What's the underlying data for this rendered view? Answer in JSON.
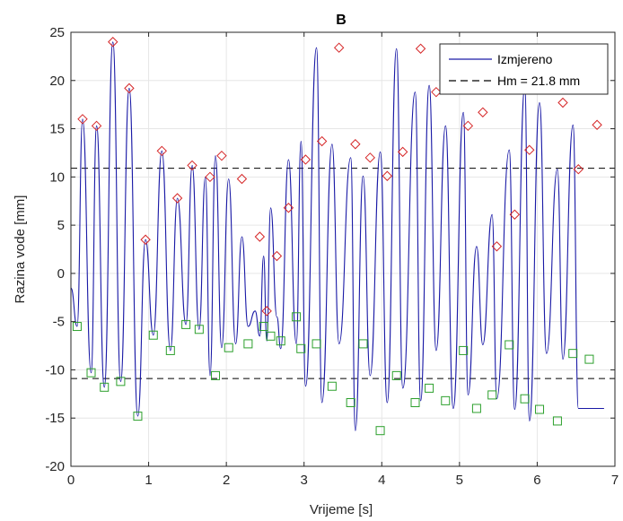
{
  "chart_data": {
    "type": "line",
    "title": "B",
    "xlabel": "Vrijeme [s]",
    "ylabel": "Razina vode [mm]",
    "xlim": [
      0,
      7
    ],
    "ylim": [
      -20,
      25
    ],
    "xticks": [
      0,
      1,
      2,
      3,
      4,
      5,
      6,
      7
    ],
    "yticks": [
      -20,
      -15,
      -10,
      -5,
      0,
      5,
      10,
      15,
      20,
      25
    ],
    "grid": true,
    "legend_position": "top-right",
    "colors": {
      "measured": "#1a1aa6",
      "hm_line": "#000000",
      "crest_marker": "#d62728",
      "trough_marker": "#2ca02c",
      "grid": "#e6e6e6"
    },
    "series": [
      {
        "name": "Izmjereno",
        "style": "solid",
        "x": [
          0.0,
          0.08,
          0.15,
          0.26,
          0.33,
          0.43,
          0.54,
          0.64,
          0.75,
          0.86,
          0.96,
          1.06,
          1.17,
          1.28,
          1.37,
          1.48,
          1.56,
          1.65,
          1.73,
          1.79,
          1.86,
          1.94,
          2.03,
          2.12,
          2.2,
          2.28,
          2.37,
          2.43,
          2.48,
          2.52,
          2.57,
          2.65,
          2.7,
          2.8,
          2.9,
          2.96,
          3.02,
          3.16,
          3.23,
          3.36,
          3.45,
          3.6,
          3.66,
          3.76,
          3.85,
          3.98,
          4.07,
          4.19,
          4.27,
          4.43,
          4.5,
          4.61,
          4.7,
          4.82,
          4.92,
          5.05,
          5.11,
          5.22,
          5.3,
          5.42,
          5.48,
          5.64,
          5.71,
          5.84,
          5.9,
          6.03,
          6.12,
          6.26,
          6.33,
          6.46,
          6.53,
          6.67,
          6.77,
          6.86
        ],
        "y": [
          -1.5,
          -5.5,
          16.0,
          -10.3,
          15.3,
          -11.8,
          24.0,
          -11.2,
          19.2,
          -14.8,
          3.5,
          -6.4,
          12.7,
          -8.0,
          7.8,
          -5.3,
          11.2,
          -5.8,
          10.0,
          -10.6,
          12.2,
          -7.7,
          9.8,
          -7.3,
          3.8,
          -5.5,
          -3.9,
          -6.5,
          1.8,
          -7.0,
          6.8,
          -4.5,
          -7.8,
          11.8,
          -7.3,
          13.7,
          -11.7,
          23.4,
          -13.4,
          13.4,
          -7.3,
          12.0,
          -16.3,
          10.1,
          -10.6,
          12.6,
          -13.4,
          23.3,
          -11.9,
          18.8,
          -13.2,
          19.5,
          -8.0,
          15.3,
          -14.0,
          16.7,
          -12.6,
          2.8,
          -7.4,
          6.1,
          -13.0,
          12.8,
          -14.1,
          19.3,
          -15.3,
          17.7,
          -8.3,
          10.8,
          -8.9,
          15.4,
          -14.0,
          -14.0,
          -14.0,
          -14.0
        ]
      },
      {
        "name": "Hm = 21.8 mm",
        "style": "dashed",
        "levels": [
          10.9,
          -10.9
        ]
      }
    ],
    "crest_markers": {
      "x": [
        0.15,
        0.33,
        0.54,
        0.75,
        0.96,
        1.17,
        1.37,
        1.56,
        1.79,
        1.94,
        2.2,
        2.43,
        2.52,
        2.65,
        2.8,
        3.02,
        3.23,
        3.45,
        3.66,
        3.85,
        4.07,
        4.27,
        4.5,
        4.7,
        4.92,
        5.11,
        5.3,
        5.48,
        5.71,
        5.9,
        6.12,
        6.33,
        6.53,
        6.77
      ],
      "y": [
        16.0,
        15.3,
        24.0,
        19.2,
        3.5,
        12.7,
        7.8,
        11.2,
        10.0,
        12.2,
        9.8,
        3.8,
        -3.9,
        1.8,
        6.8,
        11.8,
        13.7,
        23.4,
        13.4,
        12.0,
        10.1,
        12.6,
        23.3,
        18.8,
        19.5,
        15.3,
        16.7,
        2.8,
        6.1,
        12.8,
        19.3,
        17.7,
        10.8,
        15.4
      ]
    },
    "trough_markers": {
      "x": [
        0.08,
        0.26,
        0.43,
        0.64,
        0.86,
        1.06,
        1.28,
        1.48,
        1.65,
        1.86,
        2.03,
        2.28,
        2.48,
        2.57,
        2.7,
        2.9,
        2.96,
        3.16,
        3.36,
        3.6,
        3.76,
        3.98,
        4.19,
        4.43,
        4.61,
        4.82,
        5.05,
        5.22,
        5.42,
        5.64,
        5.84,
        6.03,
        6.26,
        6.46,
        6.67
      ],
      "y": [
        -5.5,
        -10.3,
        -11.8,
        -11.2,
        -14.8,
        -6.4,
        -8.0,
        -5.3,
        -5.8,
        -10.6,
        -7.7,
        -7.3,
        -5.5,
        -6.5,
        -7.0,
        -4.5,
        -7.8,
        -7.3,
        -11.7,
        -13.4,
        -7.3,
        -16.3,
        -10.6,
        -13.4,
        -11.9,
        -13.2,
        -8.0,
        -14.0,
        -12.6,
        -7.4,
        -13.0,
        -14.1,
        -15.3,
        -8.3,
        -8.9
      ]
    }
  }
}
